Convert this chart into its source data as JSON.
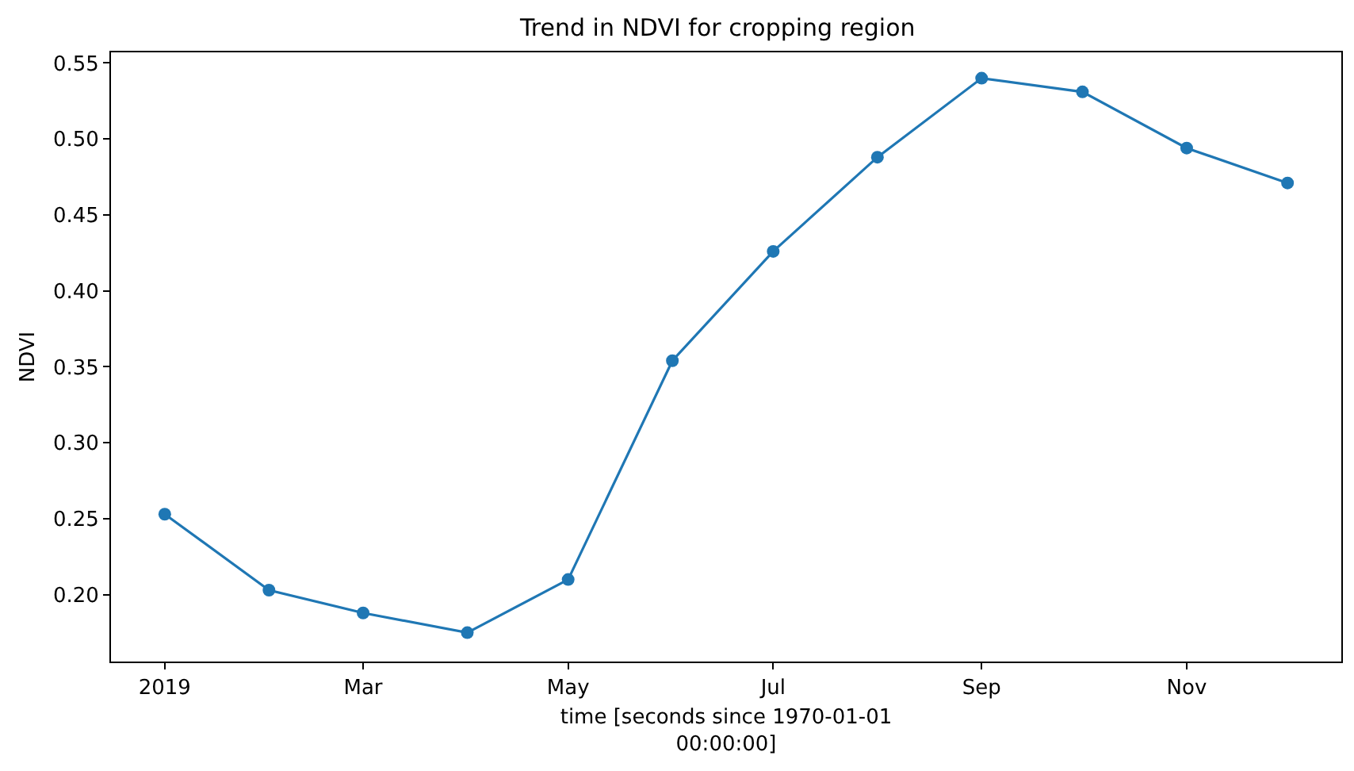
{
  "chart_data": {
    "type": "line",
    "title": "Trend in NDVI for cropping region",
    "xlabel": "time [seconds since 1970-01-01 00:00:00]",
    "ylabel": "NDVI",
    "x": [
      "2019-01-01",
      "2019-02-01",
      "2019-03-01",
      "2019-04-01",
      "2019-05-01",
      "2019-06-01",
      "2019-07-01",
      "2019-08-01",
      "2019-09-01",
      "2019-10-01",
      "2019-11-01",
      "2019-12-01"
    ],
    "series": [
      {
        "color": "#1f77b4",
        "values": [
          0.253,
          0.203,
          0.188,
          0.175,
          0.21,
          0.354,
          0.426,
          0.488,
          0.54,
          0.531,
          0.494,
          0.471
        ]
      }
    ],
    "xlim": [
      "2018-12-16",
      "2019-12-17"
    ],
    "xticks": [
      {
        "value": "2019-01-01",
        "label": "2019"
      },
      {
        "value": "2019-03-01",
        "label": "Mar"
      },
      {
        "value": "2019-05-01",
        "label": "May"
      },
      {
        "value": "2019-07-01",
        "label": "Jul"
      },
      {
        "value": "2019-09-01",
        "label": "Sep"
      },
      {
        "value": "2019-11-01",
        "label": "Nov"
      }
    ],
    "ylim": [
      0.156,
      0.557
    ],
    "yticks": [
      {
        "value": 0.2,
        "label": "0.20"
      },
      {
        "value": 0.25,
        "label": "0.25"
      },
      {
        "value": 0.3,
        "label": "0.30"
      },
      {
        "value": 0.35,
        "label": "0.35"
      },
      {
        "value": 0.4,
        "label": "0.40"
      },
      {
        "value": 0.45,
        "label": "0.45"
      },
      {
        "value": 0.5,
        "label": "0.50"
      },
      {
        "value": 0.55,
        "label": "0.55"
      }
    ],
    "marker": "circle",
    "line_style": "solid"
  }
}
